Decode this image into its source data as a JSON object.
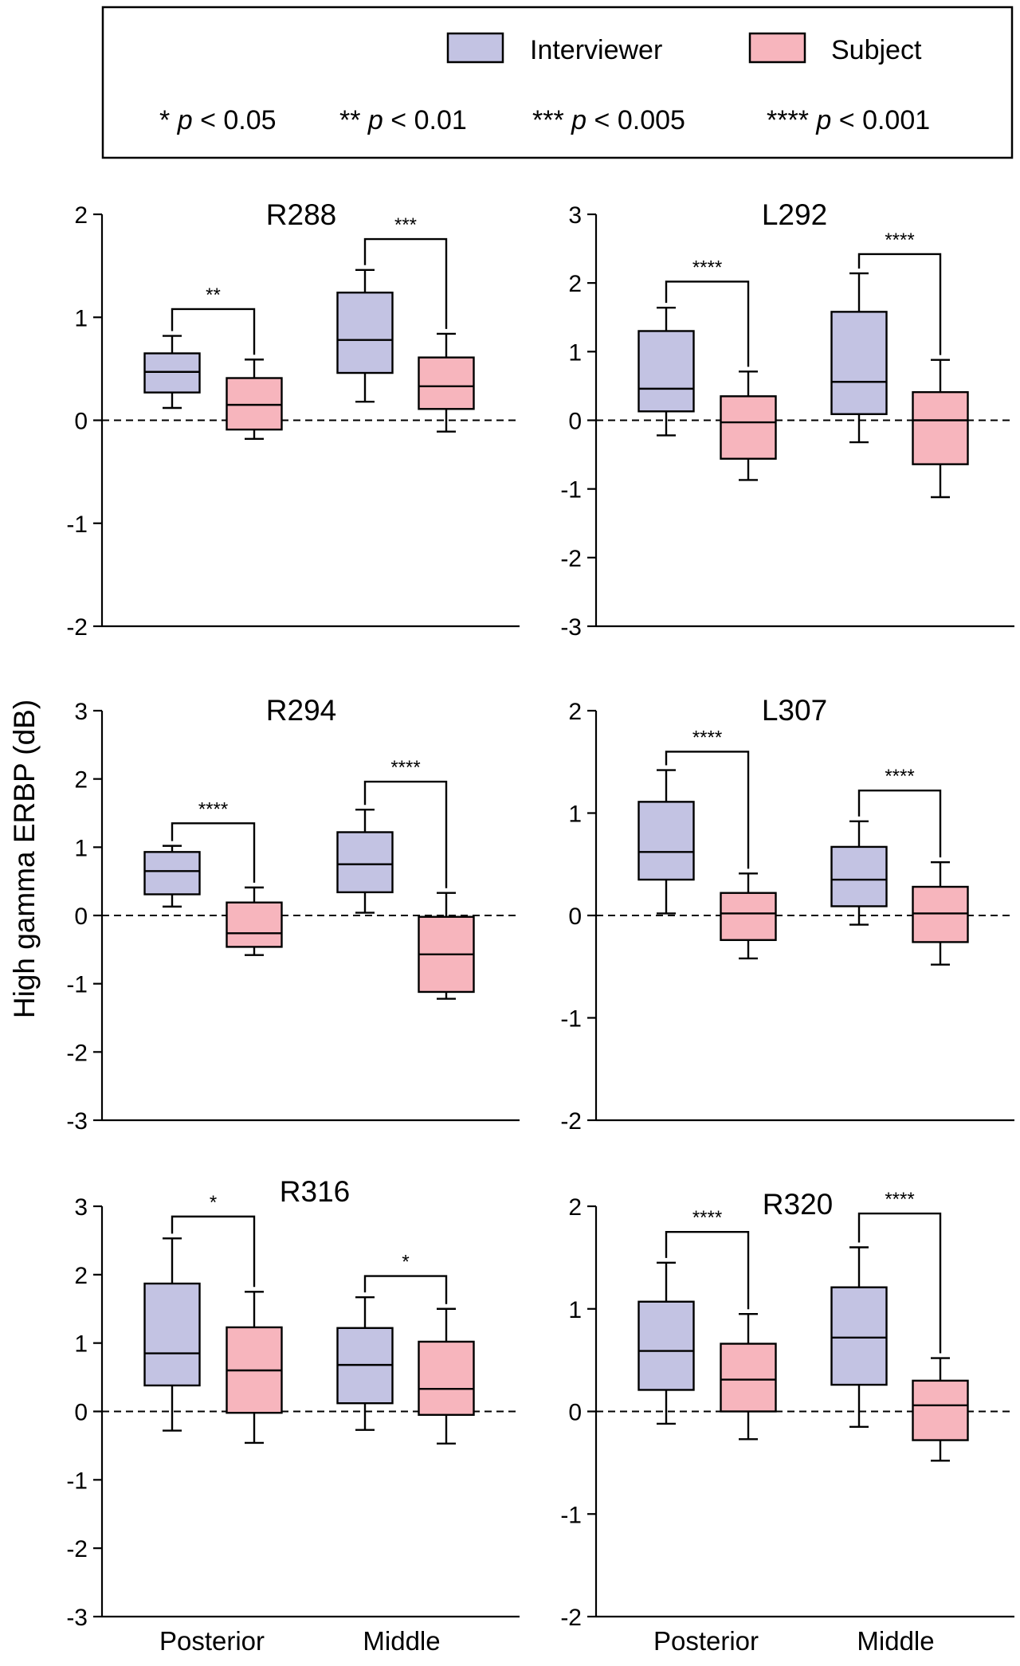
{
  "legend": {
    "entries": [
      {
        "label": "Interviewer",
        "color": "#c3c3e3"
      },
      {
        "label": "Subject",
        "color": "#f7b5bd"
      }
    ],
    "significance": [
      {
        "stars": "*",
        "p": "p",
        "rel": "< 0.05"
      },
      {
        "stars": "**",
        "p": "p",
        "rel": "< 0.01"
      },
      {
        "stars": "***",
        "p": "p",
        "rel": "< 0.005"
      },
      {
        "stars": "****",
        "p": "p",
        "rel": "< 0.001"
      }
    ]
  },
  "ylabel": "High gamma ERBP (dB)",
  "chart_data": [
    {
      "type": "boxplot",
      "title": "R288",
      "ylim": [
        -2,
        2
      ],
      "ticks": [
        "2",
        "1",
        "0",
        "-1",
        "-2"
      ],
      "categories": [
        "Posterior",
        "Middle"
      ],
      "series": [
        {
          "name": "Interviewer",
          "boxes": [
            {
              "whisker_low": 0.12,
              "q1": 0.27,
              "median": 0.47,
              "q3": 0.65,
              "whisker_high": 0.82
            },
            {
              "whisker_low": 0.18,
              "q1": 0.46,
              "median": 0.78,
              "q3": 1.24,
              "whisker_high": 1.46
            }
          ]
        },
        {
          "name": "Subject",
          "boxes": [
            {
              "whisker_low": -0.18,
              "q1": -0.09,
              "median": 0.15,
              "q3": 0.41,
              "whisker_high": 0.59
            },
            {
              "whisker_low": -0.11,
              "q1": 0.11,
              "median": 0.33,
              "q3": 0.61,
              "whisker_high": 0.84
            }
          ]
        }
      ],
      "significance": [
        {
          "category": 0,
          "stars": "**",
          "level": 1.08
        },
        {
          "category": 1,
          "stars": "***",
          "level": 1.76
        }
      ]
    },
    {
      "type": "boxplot",
      "title": "L292",
      "ylim": [
        -3,
        3
      ],
      "ticks": [
        "3",
        "2",
        "1",
        "0",
        "-1",
        "-2",
        "-3"
      ],
      "categories": [
        "Posterior",
        "Middle"
      ],
      "series": [
        {
          "name": "Interviewer",
          "boxes": [
            {
              "whisker_low": -0.22,
              "q1": 0.13,
              "median": 0.46,
              "q3": 1.3,
              "whisker_high": 1.64
            },
            {
              "whisker_low": -0.32,
              "q1": 0.09,
              "median": 0.56,
              "q3": 1.58,
              "whisker_high": 2.14
            }
          ]
        },
        {
          "name": "Subject",
          "boxes": [
            {
              "whisker_low": -0.87,
              "q1": -0.56,
              "median": -0.03,
              "q3": 0.35,
              "whisker_high": 0.71
            },
            {
              "whisker_low": -1.12,
              "q1": -0.64,
              "median": 0.0,
              "q3": 0.41,
              "whisker_high": 0.88
            }
          ]
        }
      ],
      "significance": [
        {
          "category": 0,
          "stars": "****",
          "level": 2.02
        },
        {
          "category": 1,
          "stars": "****",
          "level": 2.42
        }
      ]
    },
    {
      "type": "boxplot",
      "title": "R294",
      "ylim": [
        -3,
        3
      ],
      "ticks": [
        "3",
        "2",
        "1",
        "0",
        "-1",
        "-2",
        "-3"
      ],
      "categories": [
        "Posterior",
        "Middle"
      ],
      "series": [
        {
          "name": "Interviewer",
          "boxes": [
            {
              "whisker_low": 0.13,
              "q1": 0.31,
              "median": 0.65,
              "q3": 0.93,
              "whisker_high": 1.02
            },
            {
              "whisker_low": 0.04,
              "q1": 0.34,
              "median": 0.75,
              "q3": 1.22,
              "whisker_high": 1.55
            }
          ]
        },
        {
          "name": "Subject",
          "boxes": [
            {
              "whisker_low": -0.58,
              "q1": -0.46,
              "median": -0.26,
              "q3": 0.19,
              "whisker_high": 0.41
            },
            {
              "whisker_low": -1.22,
              "q1": -1.12,
              "median": -0.57,
              "q3": -0.02,
              "whisker_high": 0.33
            }
          ]
        }
      ],
      "significance": [
        {
          "category": 0,
          "stars": "****",
          "level": 1.35
        },
        {
          "category": 1,
          "stars": "****",
          "level": 1.96
        }
      ]
    },
    {
      "type": "boxplot",
      "title": "L307",
      "ylim": [
        -2,
        2
      ],
      "ticks": [
        "2",
        "1",
        "0",
        "-1",
        "-2"
      ],
      "categories": [
        "Posterior",
        "Middle"
      ],
      "series": [
        {
          "name": "Interviewer",
          "boxes": [
            {
              "whisker_low": 0.02,
              "q1": 0.35,
              "median": 0.62,
              "q3": 1.11,
              "whisker_high": 1.42
            },
            {
              "whisker_low": -0.09,
              "q1": 0.09,
              "median": 0.35,
              "q3": 0.67,
              "whisker_high": 0.92
            }
          ]
        },
        {
          "name": "Subject",
          "boxes": [
            {
              "whisker_low": -0.42,
              "q1": -0.24,
              "median": 0.02,
              "q3": 0.22,
              "whisker_high": 0.41
            },
            {
              "whisker_low": -0.48,
              "q1": -0.26,
              "median": 0.02,
              "q3": 0.28,
              "whisker_high": 0.52
            }
          ]
        }
      ],
      "significance": [
        {
          "category": 0,
          "stars": "****",
          "level": 1.6
        },
        {
          "category": 1,
          "stars": "****",
          "level": 1.22
        }
      ]
    },
    {
      "type": "boxplot",
      "title": "R316",
      "ylim": [
        -3,
        3
      ],
      "ticks": [
        "3",
        "2",
        "1",
        "0",
        "-1",
        "-2",
        "-3"
      ],
      "categories": [
        "Posterior",
        "Middle"
      ],
      "series": [
        {
          "name": "Interviewer",
          "boxes": [
            {
              "whisker_low": -0.28,
              "q1": 0.38,
              "median": 0.85,
              "q3": 1.87,
              "whisker_high": 2.53
            },
            {
              "whisker_low": -0.27,
              "q1": 0.12,
              "median": 0.68,
              "q3": 1.22,
              "whisker_high": 1.67
            }
          ]
        },
        {
          "name": "Subject",
          "boxes": [
            {
              "whisker_low": -0.46,
              "q1": -0.02,
              "median": 0.6,
              "q3": 1.23,
              "whisker_high": 1.75
            },
            {
              "whisker_low": -0.47,
              "q1": -0.05,
              "median": 0.33,
              "q3": 1.02,
              "whisker_high": 1.5
            }
          ]
        }
      ],
      "significance": [
        {
          "category": 0,
          "stars": "*",
          "level": 2.85
        },
        {
          "category": 1,
          "stars": "*",
          "level": 1.98
        }
      ]
    },
    {
      "type": "boxplot",
      "title": "R320",
      "ylim": [
        -2,
        2
      ],
      "ticks": [
        "2",
        "1",
        "0",
        "-1",
        "-2"
      ],
      "categories": [
        "Posterior",
        "Middle"
      ],
      "series": [
        {
          "name": "Interviewer",
          "boxes": [
            {
              "whisker_low": -0.12,
              "q1": 0.21,
              "median": 0.59,
              "q3": 1.07,
              "whisker_high": 1.45
            },
            {
              "whisker_low": -0.15,
              "q1": 0.26,
              "median": 0.72,
              "q3": 1.21,
              "whisker_high": 1.6
            }
          ]
        },
        {
          "name": "Subject",
          "boxes": [
            {
              "whisker_low": -0.27,
              "q1": 0.0,
              "median": 0.31,
              "q3": 0.66,
              "whisker_high": 0.95
            },
            {
              "whisker_low": -0.48,
              "q1": -0.28,
              "median": 0.06,
              "q3": 0.3,
              "whisker_high": 0.52
            }
          ]
        }
      ],
      "significance": [
        {
          "category": 0,
          "stars": "****",
          "level": 1.75
        },
        {
          "category": 1,
          "stars": "****",
          "level": 1.93
        }
      ]
    }
  ]
}
